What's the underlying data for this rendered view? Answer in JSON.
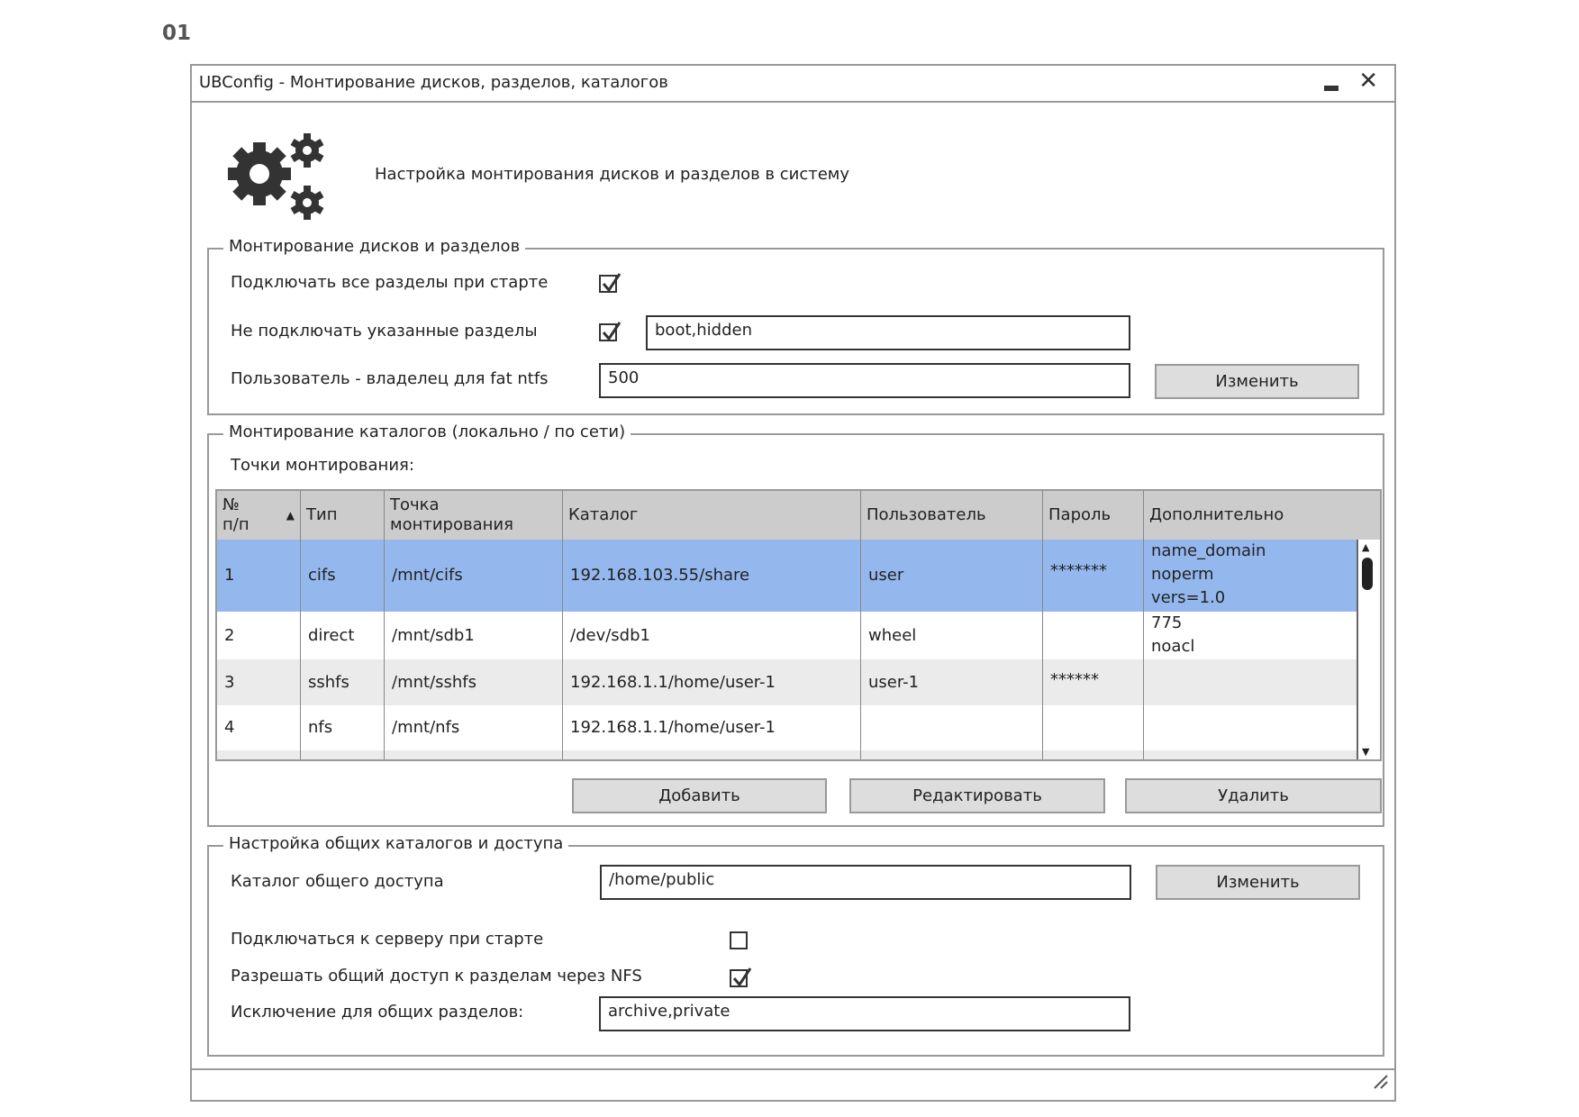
{
  "page_number": "01",
  "window": {
    "title": "UBConfig - Монтирование дисков, разделов, каталогов"
  },
  "header": {
    "text": "Настройка монтирования дисков и разделов в систему",
    "icon": "gears-icon"
  },
  "disks": {
    "legend": "Монтирование дисков и разделов",
    "mount_all_label": "Подключать все разделы при старте",
    "mount_all_checked": true,
    "exclude_label": "Не подключать указанные разделы",
    "exclude_checked": true,
    "exclude_value": "boot,hidden",
    "owner_label": "Пользователь - владелец для fat ntfs",
    "owner_value": "500",
    "change_label": "Изменить"
  },
  "catalogs": {
    "legend": "Монтирование каталогов (локально / по сети)",
    "points_label": "Точки монтирования:",
    "columns": [
      "№\nп/п",
      "Тип",
      "Точка\nмонтирования",
      "Каталог",
      "Пользователь",
      "Пароль",
      "Дополнительно"
    ],
    "sort_column": 0,
    "sort_dir": "asc",
    "rows": [
      {
        "n": "1",
        "type": "cifs",
        "mount": "/mnt/cifs",
        "catalog": "192.168.103.55/share",
        "user": "user",
        "password": "*******",
        "extra": "name_domain\nnoperm\nvers=1.0",
        "selected": true
      },
      {
        "n": "2",
        "type": "direct",
        "mount": "/mnt/sdb1",
        "catalog": "/dev/sdb1",
        "user": "wheel",
        "password": "",
        "extra": "775\nnoacl"
      },
      {
        "n": "3",
        "type": "sshfs",
        "mount": "/mnt/sshfs",
        "catalog": "192.168.1.1/home/user-1",
        "user": "user-1",
        "password": "******",
        "extra": ""
      },
      {
        "n": "4",
        "type": "nfs",
        "mount": "/mnt/nfs",
        "catalog": "192.168.1.1/home/user-1",
        "user": "",
        "password": "",
        "extra": ""
      }
    ],
    "add_label": "Добавить",
    "edit_label": "Редактировать",
    "delete_label": "Удалить",
    "selected_color": "#94b8ee"
  },
  "shared": {
    "legend": "Настройка общих каталогов и доступа",
    "dir_label": "Каталог общего доступа",
    "dir_value": "/home/public",
    "change_label": "Изменить",
    "connect_label": "Подключаться к серверу при старте",
    "connect_checked": false,
    "nfs_label": "Разрешать общий доступ к разделам через NFS",
    "nfs_checked": true,
    "exclude_label": "Исключение для общих разделов:",
    "exclude_value": "archive,private"
  }
}
